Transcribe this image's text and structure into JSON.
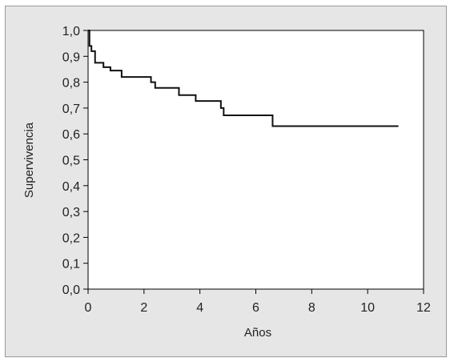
{
  "chart_data": {
    "type": "line",
    "title": "",
    "xlabel": "Años",
    "ylabel": "Supervivencia",
    "xlim": [
      0,
      12
    ],
    "ylim": [
      0.0,
      1.0
    ],
    "grid": false,
    "legend": "none",
    "step": true,
    "xticks": [
      {
        "value": 0,
        "label": "0"
      },
      {
        "value": 2,
        "label": "2"
      },
      {
        "value": 4,
        "label": "4"
      },
      {
        "value": 6,
        "label": "6"
      },
      {
        "value": 8,
        "label": "8"
      },
      {
        "value": 10,
        "label": "10"
      },
      {
        "value": 12,
        "label": "12"
      }
    ],
    "yticks": [
      {
        "value": 0.0,
        "label": "0,0"
      },
      {
        "value": 0.1,
        "label": "0,1"
      },
      {
        "value": 0.2,
        "label": "0,2"
      },
      {
        "value": 0.3,
        "label": "0,3"
      },
      {
        "value": 0.4,
        "label": "0,4"
      },
      {
        "value": 0.5,
        "label": "0,5"
      },
      {
        "value": 0.6,
        "label": "0,6"
      },
      {
        "value": 0.7,
        "label": "0,7"
      },
      {
        "value": 0.8,
        "label": "0,8"
      },
      {
        "value": 0.9,
        "label": "0,9"
      },
      {
        "value": 1.0,
        "label": "1,0"
      }
    ],
    "series": [
      {
        "color": "#111111",
        "points": [
          {
            "x": 0.0,
            "y": 1.0
          },
          {
            "x": 0.05,
            "y": 0.94
          },
          {
            "x": 0.12,
            "y": 0.92
          },
          {
            "x": 0.25,
            "y": 0.875
          },
          {
            "x": 0.55,
            "y": 0.858
          },
          {
            "x": 0.8,
            "y": 0.845
          },
          {
            "x": 1.2,
            "y": 0.82
          },
          {
            "x": 2.25,
            "y": 0.8
          },
          {
            "x": 2.4,
            "y": 0.778
          },
          {
            "x": 3.25,
            "y": 0.75
          },
          {
            "x": 3.85,
            "y": 0.727
          },
          {
            "x": 4.75,
            "y": 0.7
          },
          {
            "x": 4.85,
            "y": 0.672
          },
          {
            "x": 6.6,
            "y": 0.63
          },
          {
            "x": 11.1,
            "y": 0.63
          }
        ]
      }
    ]
  }
}
